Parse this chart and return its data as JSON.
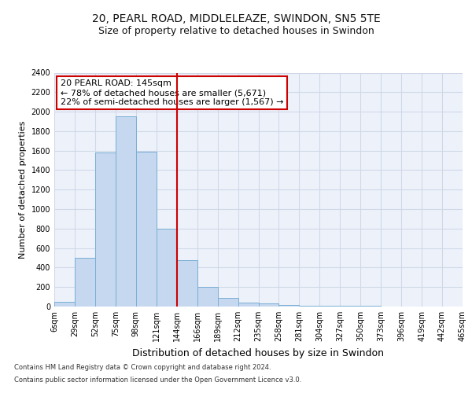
{
  "title_line1": "20, PEARL ROAD, MIDDLELEAZE, SWINDON, SN5 5TE",
  "title_line2": "Size of property relative to detached houses in Swindon",
  "xlabel": "Distribution of detached houses by size in Swindon",
  "ylabel": "Number of detached properties",
  "footer_line1": "Contains HM Land Registry data © Crown copyright and database right 2024.",
  "footer_line2": "Contains public sector information licensed under the Open Government Licence v3.0.",
  "bin_labels": [
    "6sqm",
    "29sqm",
    "52sqm",
    "75sqm",
    "98sqm",
    "121sqm",
    "144sqm",
    "166sqm",
    "189sqm",
    "212sqm",
    "235sqm",
    "258sqm",
    "281sqm",
    "304sqm",
    "327sqm",
    "350sqm",
    "373sqm",
    "396sqm",
    "419sqm",
    "442sqm",
    "465sqm"
  ],
  "bar_values": [
    50,
    500,
    1580,
    1950,
    1590,
    800,
    475,
    200,
    90,
    40,
    30,
    20,
    5,
    5,
    5,
    5,
    0,
    0,
    0,
    0
  ],
  "bar_color": "#c5d8ef",
  "bar_edge_color": "#7aaed4",
  "vline_color": "#cc0000",
  "annotation_text": "20 PEARL ROAD: 145sqm\n← 78% of detached houses are smaller (5,671)\n22% of semi-detached houses are larger (1,567) →",
  "annotation_box_color": "#cc0000",
  "ylim": [
    0,
    2400
  ],
  "yticks": [
    0,
    200,
    400,
    600,
    800,
    1000,
    1200,
    1400,
    1600,
    1800,
    2000,
    2200,
    2400
  ],
  "grid_color": "#d0d8e8",
  "bg_color": "#edf2fa",
  "title_fontsize": 10,
  "subtitle_fontsize": 9,
  "ylabel_fontsize": 8,
  "xlabel_fontsize": 9,
  "tick_fontsize": 7,
  "footer_fontsize": 6,
  "annotation_fontsize": 8
}
